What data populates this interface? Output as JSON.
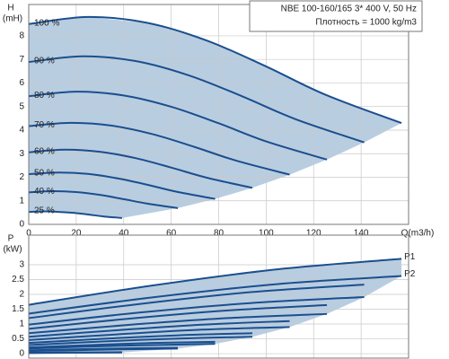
{
  "chart_data": [
    {
      "type": "line",
      "info": [
        "NBE 100-160/165   3* 400 V, 50 Hz",
        "Плотность = 1000 kg/m3"
      ],
      "y_label": [
        "H",
        "(mH)"
      ],
      "x_label": "Q(m3/h)",
      "xlim": [
        0,
        160
      ],
      "xticks": [
        0,
        20,
        40,
        60,
        80,
        100,
        120,
        140
      ],
      "ylim": [
        0,
        9.33
      ],
      "yticks": [
        0,
        1,
        2,
        3,
        4,
        5,
        6,
        7,
        8
      ],
      "grid": true,
      "line_color": "#1a4f8e",
      "fill_color": "#b9cde1",
      "series": [
        {
          "name": "100 %",
          "x": [
            0,
            25,
            50,
            75,
            100,
            125,
            157
          ],
          "values": [
            8.5,
            8.8,
            8.55,
            7.8,
            6.7,
            5.5,
            4.3
          ]
        },
        {
          "name": "90 %",
          "x": [
            0,
            22.5,
            45,
            67.5,
            90,
            112.5,
            141.3
          ],
          "values": [
            6.89,
            7.13,
            6.93,
            6.32,
            5.43,
            4.46,
            3.48
          ]
        },
        {
          "name": "80 %",
          "x": [
            0,
            20,
            40,
            60,
            80,
            100,
            125.6
          ],
          "values": [
            5.44,
            5.63,
            5.47,
            4.99,
            4.29,
            3.52,
            2.75
          ]
        },
        {
          "name": "70 %",
          "x": [
            0,
            17.5,
            35,
            52.5,
            70,
            87.5,
            109.9
          ],
          "values": [
            4.17,
            4.31,
            4.19,
            3.82,
            3.28,
            2.7,
            2.11
          ]
        },
        {
          "name": "60 %",
          "x": [
            0,
            15,
            30,
            45,
            60,
            75,
            94.2
          ],
          "values": [
            3.06,
            3.17,
            3.08,
            2.81,
            2.41,
            1.98,
            1.55
          ]
        },
        {
          "name": "50 %",
          "x": [
            0,
            12.5,
            25,
            37.5,
            50,
            62.5,
            78.5
          ],
          "values": [
            2.13,
            2.2,
            2.14,
            1.95,
            1.68,
            1.38,
            1.08
          ]
        },
        {
          "name": "40 %",
          "x": [
            0,
            10,
            20,
            30,
            40,
            50,
            62.8
          ],
          "values": [
            1.36,
            1.41,
            1.37,
            1.25,
            1.07,
            0.88,
            0.69
          ]
        },
        {
          "name": "25 %",
          "x": [
            0,
            6.25,
            12.5,
            18.75,
            25,
            31.25,
            39.3
          ],
          "values": [
            0.53,
            0.55,
            0.53,
            0.49,
            0.42,
            0.34,
            0.27
          ]
        }
      ]
    },
    {
      "type": "line",
      "y_label": [
        "P",
        "(kW)"
      ],
      "curve_labels": [
        "P1",
        "P2"
      ],
      "xlim": [
        0,
        160
      ],
      "ylim": [
        -0.15,
        4.0
      ],
      "yticks": [
        0,
        0.5,
        1,
        1.5,
        2,
        2.5,
        3
      ],
      "grid": true,
      "line_color": "#1a4f8e",
      "fill_color": "#b9cde1",
      "series": [
        {
          "x": [
            0,
            52,
            105,
            157
          ],
          "values": [
            1.65,
            2.3,
            2.85,
            3.2
          ]
        },
        {
          "x": [
            0,
            52,
            105,
            157
          ],
          "values": [
            1.35,
            1.9,
            2.35,
            2.62
          ]
        },
        {
          "x": [
            0,
            47,
            94,
            141.3
          ],
          "values": [
            1.2,
            1.68,
            2.08,
            2.33
          ]
        },
        {
          "x": [
            0,
            47,
            94,
            141.3
          ],
          "values": [
            0.98,
            1.39,
            1.71,
            1.91
          ]
        },
        {
          "x": [
            0,
            42,
            84,
            125.6
          ],
          "values": [
            0.84,
            1.18,
            1.46,
            1.64
          ]
        },
        {
          "x": [
            0,
            42,
            84,
            125.6
          ],
          "values": [
            0.69,
            0.97,
            1.2,
            1.34
          ]
        },
        {
          "x": [
            0,
            37,
            73,
            109.9
          ],
          "values": [
            0.57,
            0.79,
            0.98,
            1.1
          ]
        },
        {
          "x": [
            0,
            37,
            73,
            109.9
          ],
          "values": [
            0.46,
            0.65,
            0.81,
            0.9
          ]
        },
        {
          "x": [
            0,
            31,
            63,
            94.2
          ],
          "values": [
            0.36,
            0.5,
            0.62,
            0.69
          ]
        },
        {
          "x": [
            0,
            31,
            63,
            94.2
          ],
          "values": [
            0.29,
            0.41,
            0.51,
            0.57
          ]
        },
        {
          "x": [
            0,
            26,
            52,
            78.5
          ],
          "values": [
            0.21,
            0.29,
            0.36,
            0.4
          ]
        },
        {
          "x": [
            0,
            26,
            52,
            78.5
          ],
          "values": [
            0.17,
            0.24,
            0.29,
            0.33
          ]
        },
        {
          "x": [
            0,
            21,
            42,
            62.8
          ],
          "values": [
            0.11,
            0.15,
            0.18,
            0.2
          ]
        },
        {
          "x": [
            0,
            21,
            42,
            62.8
          ],
          "values": [
            0.09,
            0.12,
            0.15,
            0.17
          ]
        },
        {
          "x": [
            0,
            13,
            26,
            39.3
          ],
          "values": [
            0.03,
            0.04,
            0.04,
            0.05
          ]
        },
        {
          "x": [
            0,
            13,
            26,
            39.3
          ],
          "values": [
            0.02,
            0.03,
            0.04,
            0.04
          ]
        }
      ]
    }
  ]
}
